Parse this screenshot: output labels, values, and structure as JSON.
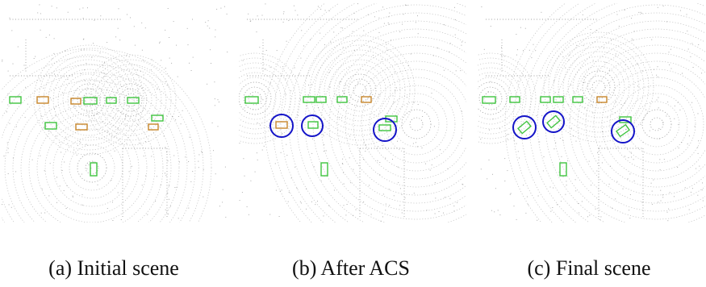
{
  "panels": [
    {
      "id": "a",
      "caption": "(a) Initial scene"
    },
    {
      "id": "b",
      "caption": "(b) After ACS"
    },
    {
      "id": "c",
      "caption": "(c) Final scene"
    }
  ],
  "colors": {
    "points": "#8c8c8c",
    "box_green": "#3fc43f",
    "box_orange": "#c8862a",
    "highlight_circle": "#1414c8"
  }
}
